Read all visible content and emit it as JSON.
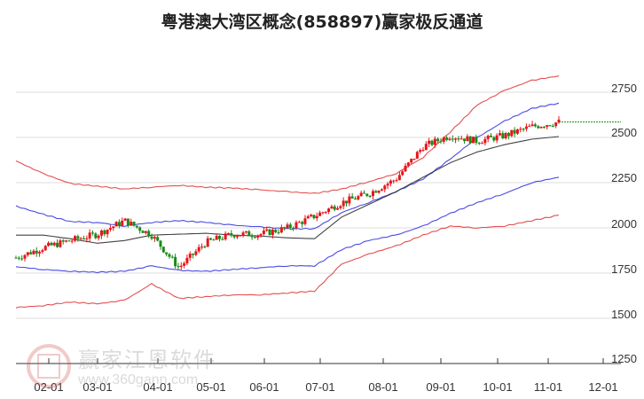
{
  "title": "粤港澳大湾区概念(858897)赢家极反通道",
  "watermark": {
    "brand": "赢家江恩软件",
    "url": "www.360gann.com",
    "seal": [
      "江",
      "赢",
      "恩",
      "家"
    ]
  },
  "colors": {
    "up": "#e8141a",
    "down": "#1a8a1a",
    "upper_outer": "#e03030",
    "upper_inner": "#2a2ae0",
    "middle": "#222222",
    "lower_inner": "#2a2ae0",
    "lower_outer": "#e03030",
    "last_price_line": "#1a8a1a",
    "grid": "#dddddd"
  },
  "y_axis": {
    "ticks": [
      "2750",
      "2500",
      "2250",
      "2000",
      "1750",
      "1500",
      "1250"
    ]
  },
  "x_axis": {
    "ticks": [
      "02-01",
      "03-01",
      "04-01",
      "05-01",
      "06-01",
      "07-01",
      "08-01",
      "09-01",
      "10-01",
      "11-01",
      "12-01"
    ]
  },
  "chart_data": {
    "type": "line",
    "title": "粤港澳大湾区概念(858897)赢家极反通道",
    "xlabel": "",
    "ylabel": "",
    "ylim": [
      1250,
      2850
    ],
    "grid": true,
    "x": [
      "01-15",
      "02-01",
      "02-15",
      "03-01",
      "03-15",
      "04-01",
      "04-15",
      "05-01",
      "05-15",
      "06-01",
      "06-15",
      "07-01",
      "07-15",
      "08-01",
      "08-15",
      "09-01",
      "09-15",
      "10-01",
      "10-15",
      "11-01",
      "11-10"
    ],
    "series": [
      {
        "name": "upper_outer (red)",
        "values": [
          2370,
          2300,
          2245,
          2230,
          2215,
          2225,
          2235,
          2225,
          2220,
          2210,
          2200,
          2190,
          2215,
          2255,
          2300,
          2390,
          2530,
          2680,
          2760,
          2815,
          2840
        ]
      },
      {
        "name": "upper_inner (blue)",
        "values": [
          2120,
          2075,
          2035,
          2030,
          2010,
          2030,
          2040,
          2030,
          2015,
          2005,
          1995,
          1995,
          2085,
          2140,
          2200,
          2270,
          2380,
          2500,
          2590,
          2660,
          2690
        ]
      },
      {
        "name": "middle (black)",
        "values": [
          1960,
          1960,
          1940,
          1915,
          1930,
          1960,
          1965,
          1970,
          1960,
          1955,
          1945,
          1940,
          2060,
          2130,
          2200,
          2280,
          2360,
          2420,
          2460,
          2490,
          2505
        ]
      },
      {
        "name": "lower_inner (blue)",
        "values": [
          1785,
          1770,
          1760,
          1755,
          1760,
          1790,
          1765,
          1760,
          1770,
          1780,
          1790,
          1790,
          1880,
          1930,
          1960,
          2010,
          2080,
          2140,
          2190,
          2250,
          2280
        ]
      },
      {
        "name": "lower_outer (red)",
        "values": [
          1560,
          1570,
          1590,
          1580,
          1600,
          1690,
          1610,
          1620,
          1630,
          1630,
          1640,
          1650,
          1800,
          1855,
          1900,
          1960,
          2010,
          2000,
          2010,
          2040,
          2070
        ]
      },
      {
        "name": "candles_close_approx",
        "values": [
          1835,
          1890,
          1930,
          1965,
          2040,
          1960,
          1780,
          1920,
          1965,
          1965,
          2000,
          2065,
          2140,
          2190,
          2270,
          2450,
          2510,
          2480,
          2510,
          2560,
          2585
        ]
      }
    ],
    "last_price": 2585
  }
}
